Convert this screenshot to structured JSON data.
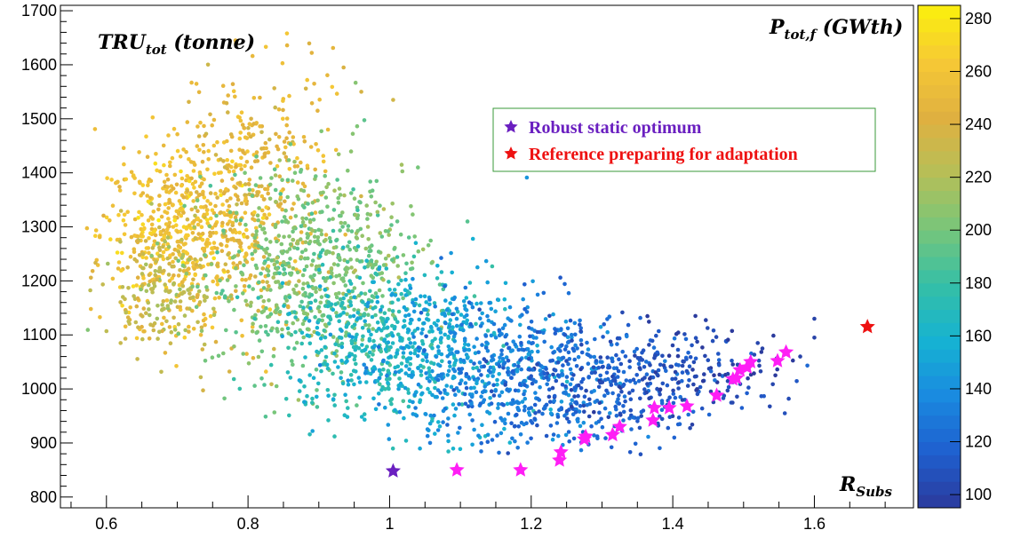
{
  "chart_data": {
    "type": "scatter",
    "xlabel": {
      "main": "R",
      "sub": "Subs"
    },
    "ylabel": {
      "main": "TRU",
      "sub": "tot",
      "rest": " (tonne)"
    },
    "zlabel": {
      "main": "P",
      "sub": "tot,f",
      "rest": " (GWth)"
    },
    "xlim": [
      0.535,
      1.74
    ],
    "ylim": [
      780,
      1710
    ],
    "zlim": [
      95,
      285
    ],
    "x_ticks": [
      0.6,
      0.8,
      1.0,
      1.2,
      1.4,
      1.6
    ],
    "x_tick_labels": [
      "0.6",
      "0.8",
      "1",
      "1.2",
      "1.4",
      "1.6"
    ],
    "y_ticks": [
      800,
      900,
      1000,
      1100,
      1200,
      1300,
      1400,
      1500,
      1600,
      1700
    ],
    "y_tick_labels": [
      "800",
      "900",
      "1000",
      "1100",
      "1200",
      "1300",
      "1400",
      "1500",
      "1600",
      "1700"
    ],
    "z_ticks": [
      100,
      120,
      140,
      160,
      180,
      200,
      220,
      240,
      260,
      280
    ],
    "z_tick_labels": [
      "100",
      "120",
      "140",
      "160",
      "180",
      "200",
      "220",
      "240",
      "260",
      "280"
    ],
    "colormap": [
      "#2b3a9c",
      "#1f5fcf",
      "#1a8ae0",
      "#16b3d2",
      "#35bfa6",
      "#78c67a",
      "#b6bf57",
      "#e0b040",
      "#f6c935",
      "#fbf10c"
    ],
    "legend": {
      "position": "top-center",
      "entries": [
        {
          "label": "Robust static optimum",
          "color": "#6a1fc0"
        },
        {
          "label": "Reference preparing for adaptation",
          "color": "#ee1111"
        }
      ]
    },
    "robust_static_optimum": [
      {
        "x": 1.005,
        "y": 848
      }
    ],
    "reference_adaptation": [
      {
        "x": 1.675,
        "y": 1115
      }
    ],
    "magenta_stars_color": "#ff1ef5",
    "magenta_stars": [
      {
        "x": 1.095,
        "y": 850
      },
      {
        "x": 1.185,
        "y": 850
      },
      {
        "x": 1.24,
        "y": 868
      },
      {
        "x": 1.242,
        "y": 883
      },
      {
        "x": 1.275,
        "y": 907
      },
      {
        "x": 1.277,
        "y": 912
      },
      {
        "x": 1.315,
        "y": 915
      },
      {
        "x": 1.325,
        "y": 930
      },
      {
        "x": 1.372,
        "y": 942
      },
      {
        "x": 1.374,
        "y": 965
      },
      {
        "x": 1.395,
        "y": 965
      },
      {
        "x": 1.42,
        "y": 968
      },
      {
        "x": 1.462,
        "y": 988
      },
      {
        "x": 1.485,
        "y": 1018
      },
      {
        "x": 1.49,
        "y": 1020
      },
      {
        "x": 1.495,
        "y": 1035
      },
      {
        "x": 1.505,
        "y": 1040
      },
      {
        "x": 1.51,
        "y": 1050
      },
      {
        "x": 1.548,
        "y": 1052
      },
      {
        "x": 1.56,
        "y": 1068
      }
    ],
    "scatter_clusters": [
      {
        "x": 0.7,
        "y": 1290,
        "sx": 0.055,
        "sy": 85,
        "n": 520,
        "z": 258
      },
      {
        "x": 0.8,
        "y": 1320,
        "sx": 0.05,
        "sy": 110,
        "n": 260,
        "z": 245
      },
      {
        "x": 0.68,
        "y": 1180,
        "sx": 0.04,
        "sy": 60,
        "n": 180,
        "z": 228
      },
      {
        "x": 0.82,
        "y": 1450,
        "sx": 0.05,
        "sy": 90,
        "n": 110,
        "z": 250
      },
      {
        "x": 0.88,
        "y": 1200,
        "sx": 0.07,
        "sy": 90,
        "n": 450,
        "z": 200
      },
      {
        "x": 0.93,
        "y": 1280,
        "sx": 0.06,
        "sy": 80,
        "n": 200,
        "z": 205
      },
      {
        "x": 0.98,
        "y": 1080,
        "sx": 0.07,
        "sy": 70,
        "n": 380,
        "z": 170
      },
      {
        "x": 1.06,
        "y": 1070,
        "sx": 0.07,
        "sy": 75,
        "n": 340,
        "z": 150
      },
      {
        "x": 1.16,
        "y": 1030,
        "sx": 0.07,
        "sy": 70,
        "n": 330,
        "z": 135
      },
      {
        "x": 1.26,
        "y": 1010,
        "sx": 0.07,
        "sy": 70,
        "n": 320,
        "z": 120
      },
      {
        "x": 1.36,
        "y": 1010,
        "sx": 0.06,
        "sy": 55,
        "n": 200,
        "z": 110
      },
      {
        "x": 1.47,
        "y": 1040,
        "sx": 0.05,
        "sy": 40,
        "n": 70,
        "z": 102
      }
    ],
    "scatter_dots": [
      {
        "x": 0.855,
        "y": 1658,
        "z": 262
      },
      {
        "x": 0.89,
        "y": 1622,
        "z": 245
      },
      {
        "x": 0.935,
        "y": 1595,
        "z": 240
      },
      {
        "x": 1.005,
        "y": 1535,
        "z": 235
      },
      {
        "x": 0.96,
        "y": 1550,
        "z": 238
      },
      {
        "x": 1.04,
        "y": 1410,
        "z": 200
      },
      {
        "x": 1.11,
        "y": 1310,
        "z": 190
      },
      {
        "x": 0.578,
        "y": 1148,
        "z": 250
      },
      {
        "x": 0.62,
        "y": 1085,
        "z": 230
      },
      {
        "x": 1.6,
        "y": 1130,
        "z": 100
      },
      {
        "x": 1.6,
        "y": 1095,
        "z": 100
      },
      {
        "x": 1.52,
        "y": 1085,
        "z": 102
      },
      {
        "x": 1.58,
        "y": 1060,
        "z": 100
      }
    ]
  }
}
